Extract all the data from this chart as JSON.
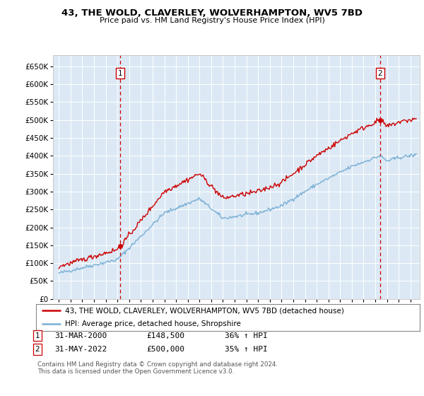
{
  "title": "43, THE WOLD, CLAVERLEY, WOLVERHAMPTON, WV5 7BD",
  "subtitle": "Price paid vs. HM Land Registry's House Price Index (HPI)",
  "legend_line1": "43, THE WOLD, CLAVERLEY, WOLVERHAMPTON, WV5 7BD (detached house)",
  "legend_line2": "HPI: Average price, detached house, Shropshire",
  "footnote": "Contains HM Land Registry data © Crown copyright and database right 2024.\nThis data is licensed under the Open Government Licence v3.0.",
  "annotation1": {
    "num": "1",
    "date": "31-MAR-2000",
    "price": "£148,500",
    "pct": "36% ↑ HPI"
  },
  "annotation2": {
    "num": "2",
    "date": "31-MAY-2022",
    "price": "£500,000",
    "pct": "35% ↑ HPI"
  },
  "ylim": [
    0,
    680000
  ],
  "yticks": [
    0,
    50000,
    100000,
    150000,
    200000,
    250000,
    300000,
    350000,
    400000,
    450000,
    500000,
    550000,
    600000,
    650000
  ],
  "background_color": "#dce9f5",
  "red_color": "#cc0000",
  "blue_color": "#7aafd4",
  "grid_color": "#ffffff",
  "marker1_x": 2000.25,
  "marker1_y": 148500,
  "marker2_x": 2022.42,
  "marker2_y": 500000,
  "xlim_left": 1994.5,
  "xlim_right": 2025.8
}
